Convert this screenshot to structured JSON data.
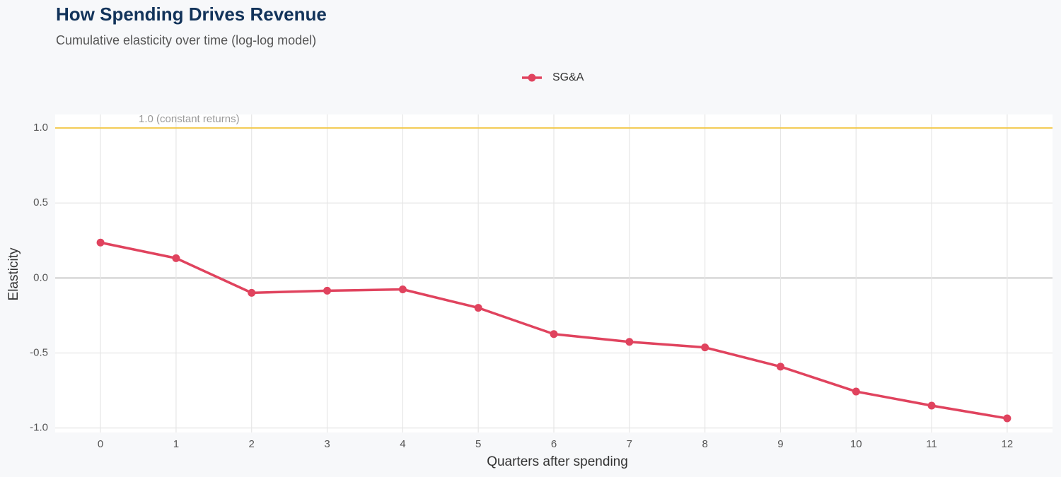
{
  "chart_data": {
    "type": "line",
    "title": "How Spending Drives Revenue",
    "subtitle": "Cumulative elasticity over time (log-log model)",
    "x_label": "Quarters after spending",
    "y_label": "Elasticity",
    "x": [
      0,
      1,
      2,
      3,
      4,
      5,
      6,
      7,
      8,
      9,
      10,
      11,
      12
    ],
    "series": [
      {
        "name": "SG&A",
        "color": "#e0435e",
        "values": [
          0.236,
          0.132,
          -0.099,
          -0.085,
          -0.076,
          -0.199,
          -0.374,
          -0.426,
          -0.463,
          -0.591,
          -0.757,
          -0.851,
          -0.936
        ]
      }
    ],
    "xlim": [
      -0.6,
      12.6
    ],
    "xticks": [
      0,
      1,
      2,
      3,
      4,
      5,
      6,
      7,
      8,
      9,
      10,
      11,
      12
    ],
    "ylim": [
      -1.03,
      1.09
    ],
    "yticks": [
      {
        "value": -1,
        "label": "-1.0"
      },
      -0.5,
      {
        "value": 0,
        "label": "0.0"
      },
      0.5,
      {
        "value": 1,
        "label": "1.0"
      }
    ],
    "grid": true,
    "legend": "top",
    "reference_line": {
      "value": 1,
      "label": "1.0 (constant returns)",
      "color": "#f2c94c"
    }
  }
}
